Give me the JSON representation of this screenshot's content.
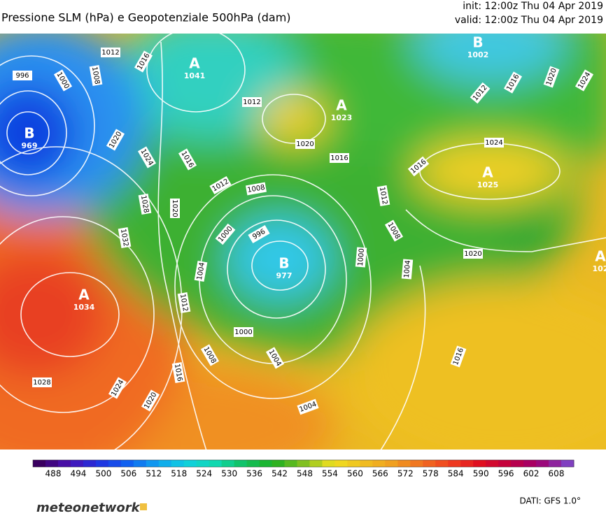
{
  "header": {
    "title": "Pressione SLM (hPa) e Geopotenziale 500hPa (dam)",
    "init": "init: 12:00z Thu 04 Apr 2019",
    "valid": "valid: 12:00z Thu 04 Apr 2019"
  },
  "map": {
    "centers": [
      {
        "letter": "B",
        "value": 969
      },
      {
        "letter": "A",
        "value": 1041
      },
      {
        "letter": "A",
        "value": 1023
      },
      {
        "letter": "B",
        "value": 1002
      },
      {
        "letter": "A",
        "value": 1025
      },
      {
        "letter": "A",
        "value": 1034
      },
      {
        "letter": "B",
        "value": 977
      },
      {
        "letter": "A",
        "value": 102
      }
    ],
    "isobar_labels": [
      996,
      1000,
      1012,
      1008,
      1016,
      1020,
      1024,
      1028,
      1032,
      1028,
      1024,
      1020,
      1016,
      1012,
      1008,
      1004,
      1000,
      996,
      1000,
      1004,
      1004,
      1020,
      1016,
      1012,
      1008,
      1012,
      1020,
      1016,
      1016,
      1024,
      1012,
      1008,
      1000,
      1004,
      1020,
      1012,
      1016,
      1020,
      1024,
      1016
    ]
  },
  "colorbar": {
    "ticks": [
      488,
      494,
      500,
      506,
      512,
      518,
      524,
      530,
      536,
      542,
      548,
      554,
      560,
      566,
      572,
      578,
      584,
      590,
      596,
      602,
      608
    ],
    "colors": [
      "#3a0060",
      "#4a10b0",
      "#2030e0",
      "#1060f0",
      "#10a0f0",
      "#10d0e0",
      "#10d8b0",
      "#10c060",
      "#20b020",
      "#80c020",
      "#f0e020",
      "#f0c020",
      "#f0a020",
      "#f07020",
      "#f04020",
      "#e01020",
      "#c00040",
      "#a00070",
      "#8040c0"
    ]
  },
  "footer": {
    "brand": "meteonetwork",
    "source": "DATI: GFS 1.0°"
  }
}
